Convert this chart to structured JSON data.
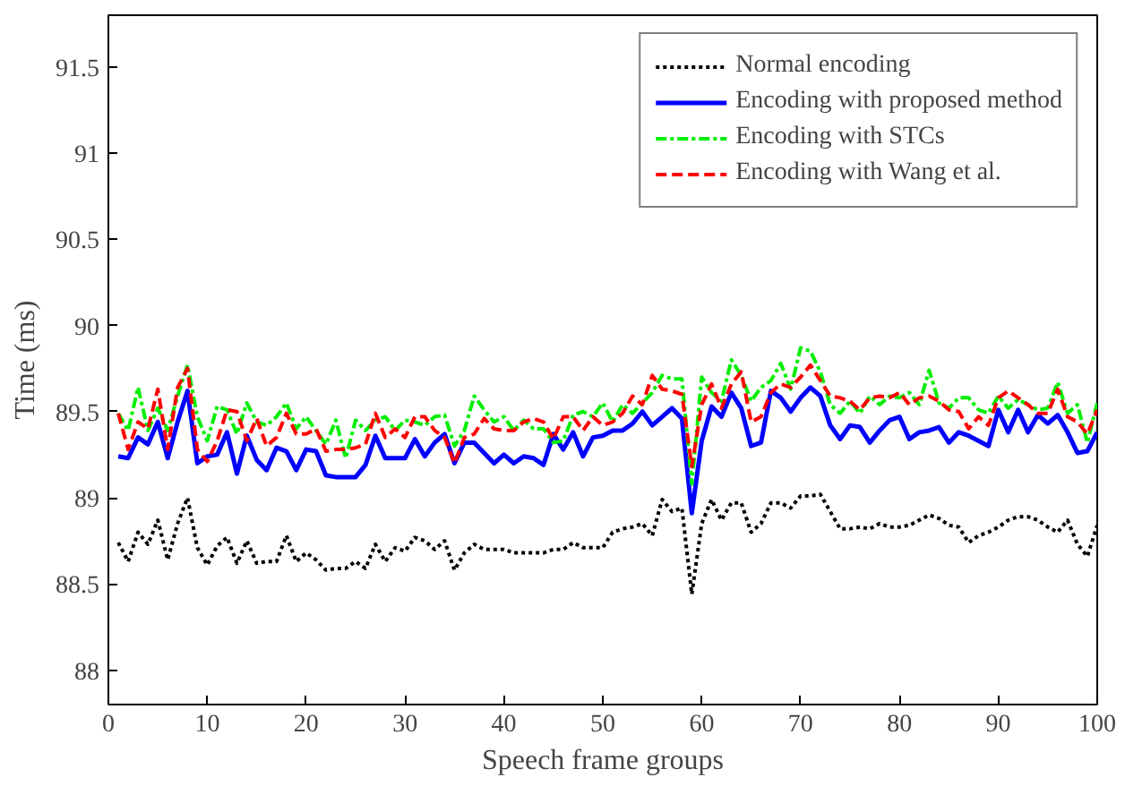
{
  "chart_data": {
    "type": "line",
    "xlabel": "Speech frame groups",
    "ylabel": "Time (ms)",
    "xlim": [
      0,
      100
    ],
    "ylim": [
      87.8,
      91.8
    ],
    "xticks": [
      0,
      10,
      20,
      30,
      40,
      50,
      60,
      70,
      80,
      90,
      100
    ],
    "yticks": [
      88,
      88.5,
      89,
      89.5,
      90,
      90.5,
      91,
      91.5
    ],
    "grid": false,
    "legend": "top right",
    "marker": "none",
    "x": [
      1,
      2,
      3,
      4,
      5,
      6,
      7,
      8,
      9,
      10,
      11,
      12,
      13,
      14,
      15,
      16,
      17,
      18,
      19,
      20,
      21,
      22,
      23,
      24,
      25,
      26,
      27,
      28,
      29,
      30,
      31,
      32,
      33,
      34,
      35,
      36,
      37,
      38,
      39,
      40,
      41,
      42,
      43,
      44,
      45,
      46,
      47,
      48,
      49,
      50,
      51,
      52,
      53,
      54,
      55,
      56,
      57,
      58,
      59,
      60,
      61,
      62,
      63,
      64,
      65,
      66,
      67,
      68,
      69,
      70,
      71,
      72,
      73,
      74,
      75,
      76,
      77,
      78,
      79,
      80,
      81,
      82,
      83,
      84,
      85,
      86,
      87,
      88,
      89,
      90,
      91,
      92,
      93,
      94,
      95,
      96,
      97,
      98,
      99,
      100
    ],
    "series": [
      {
        "name": "Normal encoding",
        "color": "#000000",
        "line_style": "dotted",
        "values": [
          88.74,
          88.63,
          88.8,
          88.73,
          88.87,
          88.64,
          88.85,
          89.0,
          88.71,
          88.61,
          88.72,
          88.77,
          88.62,
          88.75,
          88.62,
          88.63,
          88.63,
          88.78,
          88.63,
          88.68,
          88.64,
          88.58,
          88.59,
          88.59,
          88.63,
          88.59,
          88.73,
          88.63,
          88.71,
          88.69,
          88.77,
          88.75,
          88.7,
          88.75,
          88.58,
          88.68,
          88.73,
          88.7,
          88.7,
          88.7,
          88.68,
          88.68,
          88.68,
          88.68,
          88.7,
          88.7,
          88.74,
          88.71,
          88.71,
          88.71,
          88.8,
          88.82,
          88.83,
          88.85,
          88.78,
          88.99,
          88.92,
          88.94,
          88.44,
          88.85,
          88.99,
          88.87,
          88.97,
          88.97,
          88.8,
          88.85,
          88.97,
          88.97,
          88.94,
          89.01,
          89.01,
          89.02,
          88.92,
          88.82,
          88.82,
          88.83,
          88.82,
          88.85,
          88.83,
          88.83,
          88.84,
          88.87,
          88.9,
          88.88,
          88.84,
          88.83,
          88.74,
          88.78,
          88.8,
          88.83,
          88.87,
          88.89,
          88.89,
          88.87,
          88.83,
          88.8,
          88.87,
          88.73,
          88.66,
          88.84
        ]
      },
      {
        "name": "Encoding with proposed method",
        "color": "#0000ff",
        "line_style": "solid",
        "values": [
          89.24,
          89.23,
          89.35,
          89.31,
          89.44,
          89.23,
          89.44,
          89.62,
          89.2,
          89.24,
          89.25,
          89.38,
          89.14,
          89.36,
          89.22,
          89.16,
          89.29,
          89.27,
          89.16,
          89.28,
          89.27,
          89.13,
          89.12,
          89.12,
          89.12,
          89.19,
          89.36,
          89.23,
          89.23,
          89.23,
          89.34,
          89.24,
          89.32,
          89.37,
          89.2,
          89.32,
          89.32,
          89.26,
          89.2,
          89.25,
          89.2,
          89.24,
          89.23,
          89.19,
          89.37,
          89.28,
          89.38,
          89.24,
          89.35,
          89.36,
          89.39,
          89.39,
          89.43,
          89.5,
          89.42,
          89.47,
          89.52,
          89.46,
          88.91,
          89.33,
          89.53,
          89.47,
          89.61,
          89.52,
          89.3,
          89.32,
          89.62,
          89.58,
          89.5,
          89.58,
          89.64,
          89.59,
          89.42,
          89.34,
          89.42,
          89.41,
          89.32,
          89.39,
          89.45,
          89.47,
          89.34,
          89.38,
          89.39,
          89.41,
          89.32,
          89.38,
          89.36,
          89.33,
          89.3,
          89.51,
          89.38,
          89.51,
          89.38,
          89.48,
          89.43,
          89.48,
          89.38,
          89.26,
          89.27,
          89.38
        ]
      },
      {
        "name": "Encoding with STCs",
        "color": "#00ee00",
        "line_style": "dashdot",
        "values": [
          89.49,
          89.39,
          89.64,
          89.39,
          89.52,
          89.39,
          89.59,
          89.77,
          89.47,
          89.33,
          89.53,
          89.51,
          89.37,
          89.55,
          89.44,
          89.42,
          89.47,
          89.55,
          89.4,
          89.47,
          89.39,
          89.31,
          89.45,
          89.23,
          89.45,
          89.39,
          89.45,
          89.47,
          89.39,
          89.45,
          89.44,
          89.42,
          89.47,
          89.48,
          89.3,
          89.39,
          89.59,
          89.51,
          89.44,
          89.47,
          89.39,
          89.45,
          89.4,
          89.4,
          89.32,
          89.33,
          89.48,
          89.5,
          89.47,
          89.55,
          89.44,
          89.54,
          89.49,
          89.55,
          89.61,
          89.71,
          89.69,
          89.69,
          89.08,
          89.7,
          89.61,
          89.56,
          89.8,
          89.71,
          89.56,
          89.64,
          89.68,
          89.78,
          89.63,
          89.87,
          89.85,
          89.73,
          89.54,
          89.49,
          89.56,
          89.49,
          89.59,
          89.54,
          89.59,
          89.58,
          89.61,
          89.54,
          89.74,
          89.55,
          89.52,
          89.58,
          89.58,
          89.51,
          89.49,
          89.59,
          89.52,
          89.57,
          89.54,
          89.51,
          89.52,
          89.67,
          89.49,
          89.54,
          89.32,
          89.55
        ]
      },
      {
        "name": "Encoding with Wang et al.",
        "color": "#ff0000",
        "line_style": "dashed",
        "values": [
          89.49,
          89.28,
          89.44,
          89.4,
          89.63,
          89.28,
          89.64,
          89.75,
          89.28,
          89.21,
          89.33,
          89.51,
          89.5,
          89.33,
          89.46,
          89.3,
          89.35,
          89.49,
          89.37,
          89.37,
          89.4,
          89.27,
          89.28,
          89.28,
          89.29,
          89.31,
          89.49,
          89.35,
          89.4,
          89.35,
          89.47,
          89.47,
          89.39,
          89.35,
          89.2,
          89.35,
          89.37,
          89.46,
          89.4,
          89.39,
          89.39,
          89.44,
          89.46,
          89.44,
          89.34,
          89.47,
          89.47,
          89.39,
          89.47,
          89.42,
          89.44,
          89.49,
          89.59,
          89.54,
          89.71,
          89.63,
          89.62,
          89.6,
          89.18,
          89.54,
          89.66,
          89.52,
          89.66,
          89.73,
          89.44,
          89.47,
          89.61,
          89.66,
          89.64,
          89.7,
          89.77,
          89.68,
          89.59,
          89.58,
          89.56,
          89.51,
          89.58,
          89.59,
          89.58,
          89.61,
          89.54,
          89.58,
          89.59,
          89.56,
          89.51,
          89.5,
          89.4,
          89.47,
          89.42,
          89.58,
          89.62,
          89.58,
          89.54,
          89.49,
          89.49,
          89.63,
          89.47,
          89.44,
          89.37,
          89.51
        ]
      }
    ]
  }
}
